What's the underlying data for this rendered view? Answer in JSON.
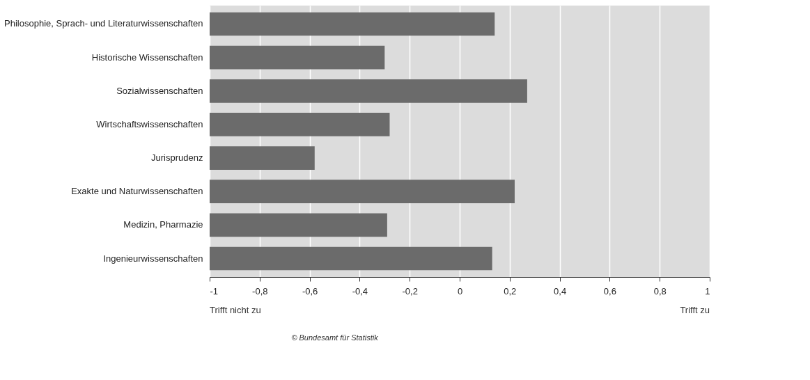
{
  "chart_data": {
    "type": "bar",
    "orientation": "horizontal",
    "categories": [
      "Philosophie, Sprach- und Literaturwissenschaften",
      "Historische Wissenschaften",
      "Sozialwissenschaften",
      "Wirtschaftswissenschaften",
      "Jurisprudenz",
      "Exakte und Naturwissenschaften",
      "Medizin, Pharmazie",
      "Ingenieurwissenschaften"
    ],
    "base": [
      -1,
      -1,
      -1,
      -1,
      -1,
      -1,
      -1,
      -1
    ],
    "values": [
      1.14,
      0.7,
      1.27,
      0.72,
      0.42,
      1.22,
      0.71,
      1.13
    ],
    "color": "#6b6b6b",
    "xlim": [
      -1,
      1
    ],
    "xticks": [
      -1,
      {
        "value": -0.8,
        "label": "-0,8"
      },
      {
        "value": -0.6,
        "label": "-0,6"
      },
      {
        "value": -0.4,
        "label": "-0,4"
      },
      {
        "value": -0.2,
        "label": "-0,2"
      },
      0,
      {
        "value": 0.2,
        "label": "0,2"
      },
      {
        "value": 0.4,
        "label": "0,4"
      },
      {
        "value": 0.6,
        "label": "0,6"
      },
      {
        "value": 0.8,
        "label": "0,8"
      },
      1
    ],
    "grid": "x",
    "annotations": [
      "Trifft nicht zu",
      "Trifft zu",
      "© Bundesamt für Statistik"
    ]
  }
}
